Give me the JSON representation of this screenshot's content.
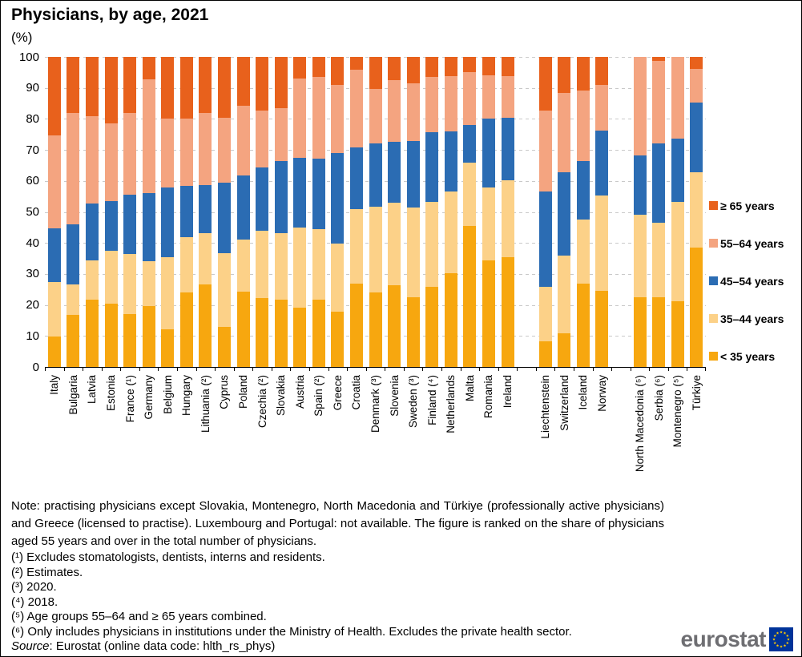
{
  "title": "Physicians, by age, 2021",
  "subtitle": "(%)",
  "legend": {
    "items": [
      {
        "label": "≥ 65 years",
        "color": "#E8611C"
      },
      {
        "label": "55–64 years",
        "color": "#F4A480"
      },
      {
        "label": "45–54 years",
        "color": "#2B6CB3"
      },
      {
        "label": "35–44 years",
        "color": "#FCD188"
      },
      {
        "label": "< 35 years",
        "color": "#F7A70F"
      }
    ]
  },
  "chart_data": {
    "type": "bar",
    "stacked": true,
    "unit": "%",
    "title": "Physicians, by age, 2021",
    "ylabel": "(%)",
    "ylim": [
      0,
      100
    ],
    "yticks": [
      0,
      10,
      20,
      30,
      40,
      50,
      60,
      70,
      80,
      90,
      100
    ],
    "grid": "dashed-horizontal",
    "legend_position": "right",
    "series_order_bottom_to_top": [
      "< 35 years",
      "35–44 years",
      "45–54 years",
      "55–64 years",
      "≥ 65 years"
    ],
    "series_colors": [
      "#F7A70F",
      "#FCD188",
      "#2B6CB3",
      "#F4A480",
      "#E8611C"
    ],
    "bars": [
      {
        "label": "Italy",
        "values": [
          9.7,
          17.6,
          17.4,
          30.1,
          25.2
        ]
      },
      {
        "label": "Bulgaria",
        "values": [
          16.8,
          9.9,
          19.4,
          35.8,
          18.1
        ]
      },
      {
        "label": "Latvia",
        "values": [
          21.6,
          12.9,
          18.1,
          28.4,
          19.0
        ]
      },
      {
        "label": "Estonia",
        "values": [
          20.5,
          17.0,
          15.9,
          25.2,
          21.4
        ]
      },
      {
        "label": "France (¹)",
        "values": [
          17.0,
          19.4,
          19.2,
          26.3,
          18.1
        ]
      },
      {
        "label": "Germany",
        "values": [
          19.7,
          14.4,
          21.9,
          36.8,
          7.2
        ]
      },
      {
        "label": "Belgium",
        "values": [
          12.2,
          23.3,
          22.3,
          22.2,
          20.0
        ]
      },
      {
        "label": "Hungary",
        "values": [
          24.0,
          17.8,
          16.6,
          21.6,
          20.0
        ]
      },
      {
        "label": "Lithuania (²)",
        "values": [
          26.6,
          16.5,
          15.5,
          23.3,
          18.1
        ]
      },
      {
        "label": "Cyprus",
        "values": [
          12.9,
          23.7,
          22.9,
          20.8,
          19.7
        ]
      },
      {
        "label": "Poland",
        "values": [
          24.3,
          16.9,
          20.6,
          22.4,
          15.8
        ]
      },
      {
        "label": "Czechia (²)",
        "values": [
          22.2,
          21.8,
          20.4,
          18.2,
          17.4
        ]
      },
      {
        "label": "Slovakia",
        "values": [
          21.8,
          21.3,
          23.3,
          17.0,
          16.6
        ]
      },
      {
        "label": "Austria",
        "values": [
          19.2,
          25.8,
          22.4,
          25.7,
          6.9
        ]
      },
      {
        "label": "Spain (²)",
        "values": [
          21.6,
          22.8,
          22.8,
          26.3,
          6.5
        ]
      },
      {
        "label": "Greece",
        "values": [
          17.9,
          21.8,
          29.3,
          21.9,
          9.1
        ]
      },
      {
        "label": "Croatia",
        "values": [
          26.9,
          24.0,
          19.8,
          25.2,
          4.1
        ]
      },
      {
        "label": "Denmark (³)",
        "values": [
          24.0,
          27.6,
          20.6,
          17.6,
          10.2
        ]
      },
      {
        "label": "Slovenia",
        "values": [
          26.3,
          26.7,
          19.6,
          19.8,
          7.6
        ]
      },
      {
        "label": "Sweden (³)",
        "values": [
          22.4,
          28.9,
          21.7,
          18.4,
          8.6
        ]
      },
      {
        "label": "Finland (⁴)",
        "values": [
          25.9,
          27.4,
          22.4,
          17.8,
          6.5
        ]
      },
      {
        "label": "Netherlands",
        "values": [
          30.3,
          26.2,
          19.4,
          17.8,
          6.3
        ]
      },
      {
        "label": "Malta",
        "values": [
          45.4,
          20.5,
          12.1,
          17.0,
          5.0
        ]
      },
      {
        "label": "Romania",
        "values": [
          34.3,
          23.5,
          22.2,
          14.0,
          6.0
        ]
      },
      {
        "label": "Ireland",
        "values": [
          35.5,
          24.8,
          20.0,
          13.4,
          6.3
        ]
      },
      {
        "label": "",
        "gap": true
      },
      {
        "label": "Liechtenstein",
        "values": [
          8.4,
          17.5,
          30.6,
          26.3,
          17.2
        ]
      },
      {
        "label": "Switzerland",
        "values": [
          10.9,
          24.9,
          26.9,
          25.8,
          11.5
        ]
      },
      {
        "label": "Iceland",
        "values": [
          26.9,
          20.7,
          18.8,
          22.8,
          10.8
        ]
      },
      {
        "label": "Norway",
        "values": [
          24.6,
          30.7,
          21.0,
          14.7,
          9.0
        ]
      },
      {
        "label": "",
        "gap": true
      },
      {
        "label": "North Macedonia (⁵)",
        "values": [
          22.4,
          26.7,
          19.2,
          31.7,
          0.0
        ]
      },
      {
        "label": "Serbia (⁶)",
        "values": [
          22.6,
          24.0,
          25.6,
          26.5,
          1.3
        ]
      },
      {
        "label": "Montenegro (⁵)",
        "values": [
          21.1,
          32.1,
          20.5,
          26.3,
          0.0
        ]
      },
      {
        "label": "Türkiye",
        "values": [
          38.4,
          24.5,
          22.4,
          10.8,
          3.9
        ]
      }
    ]
  },
  "note": "Note: practising physicians except Slovakia, Montenegro, North Macedonia and Türkiye (professionally active physicians) and Greece (licensed to practise). Luxembourg and Portugal: not available. The figure is ranked on the share of physicians aged 55 years and over in the total number of physicians.",
  "footnotes": [
    "(¹) Excludes stomatologists, dentists, interns and residents.",
    "(²) Estimates.",
    "(³) 2020.",
    "(⁴) 2018.",
    "(⁵) Age groups 55–64 and ≥ 65 years combined.",
    "(⁶) Only includes physicians in institutions under the Ministry of Health. Excludes the private health sector."
  ],
  "source": {
    "label": "Source",
    "rest": ": Eurostat (online data code: hlth_rs_phys)"
  },
  "logo": {
    "text": "eurostat"
  }
}
